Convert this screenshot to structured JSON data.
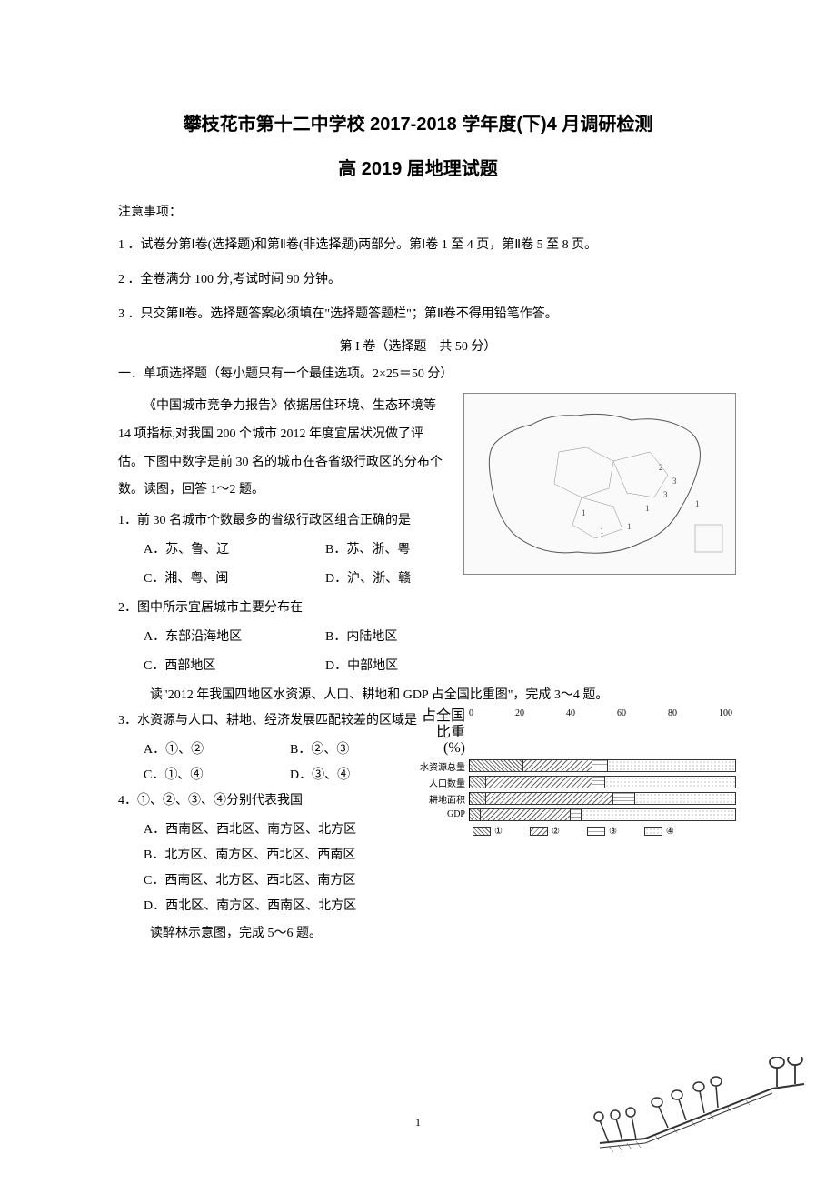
{
  "title_main": "攀枝花市第十二中学校 2017-2018 学年度(下)4 月调研检测",
  "title_sub": "高 2019 届地理试题",
  "notice": {
    "header": "注意事项：",
    "items": [
      "1 ．试卷分第Ⅰ卷(选择题)和第Ⅱ卷(非选择题)两部分。第Ⅰ卷 1 至 4 页，第Ⅱ卷 5 至 8 页。",
      "2 ．全卷满分 100 分,考试时间 90 分钟。",
      "3 ．只交第Ⅱ卷。选择题答案必须填在\"选择题答题栏\"；第Ⅱ卷不得用铅笔作答。"
    ]
  },
  "section1_header": "第 I 卷（选择题　共 50 分）",
  "section1_title": "一．单项选择题（每小题只有一个最佳选项。2×25＝50 分）",
  "passage1": "《中国城市竞争力报告》依据居住环境、生态环境等 14 项指标,对我国 200 个城市 2012 年度宜居状况做了评估。下图中数字是前 30 名的城市在各省级行政区的分布个数。读图，回答 1～2 题。",
  "q1": {
    "stem": "1．前 30 名城市个数最多的省级行政区组合正确的是",
    "opts": {
      "A": "A．苏、鲁、辽",
      "B": "B．苏、浙、粤",
      "C": "C．湘、粤、闽",
      "D": "D．沪、浙、赣"
    }
  },
  "q2": {
    "stem": "2．图中所示宜居城市主要分布在",
    "opts": {
      "A": "A．东部沿海地区",
      "B": "B．内陆地区",
      "C": "C．西部地区",
      "D": "D．中部地区"
    }
  },
  "passage2": "读\"2012 年我国四地区水资源、人口、耕地和 GDP 占全国比重图\"，完成 3～4 题。",
  "q3": {
    "stem": "3．水资源与人口、耕地、经济发展匹配较差的区域是",
    "opts": {
      "A": "A．①、②",
      "B": "B．②、③",
      "C": "C．①、④",
      "D": "D．③、④"
    }
  },
  "q4": {
    "stem": "4．①、②、③、④分别代表我国",
    "opts": {
      "A": "A．西南区、西北区、南方区、北方区",
      "B": "B．北方区、南方区、西北区、西南区",
      "C": "C．西南区、北方区、西北区、南方区",
      "D": "D．西北区、南方区、西南区、北方区"
    }
  },
  "passage3": "读醉林示意图，完成 5～6 题。",
  "chart": {
    "y_axis_label": "占全国比重 (%)",
    "x_ticks": [
      "0",
      "20",
      "40",
      "60",
      "80",
      "100"
    ],
    "rows": [
      {
        "label": "水资源总量",
        "segs": [
          20,
          26,
          6,
          48
        ]
      },
      {
        "label": "人口数量",
        "segs": [
          6,
          40,
          5,
          49
        ]
      },
      {
        "label": "耕地面积",
        "segs": [
          6,
          48,
          8,
          38
        ]
      },
      {
        "label": "GDP",
        "segs": [
          4,
          34,
          4,
          58
        ]
      }
    ],
    "legend": [
      "①",
      "②",
      "③",
      "④"
    ]
  },
  "map_placeholder": "[中国地图：省级行政区宜居城市数量分布]",
  "page_number": "1"
}
